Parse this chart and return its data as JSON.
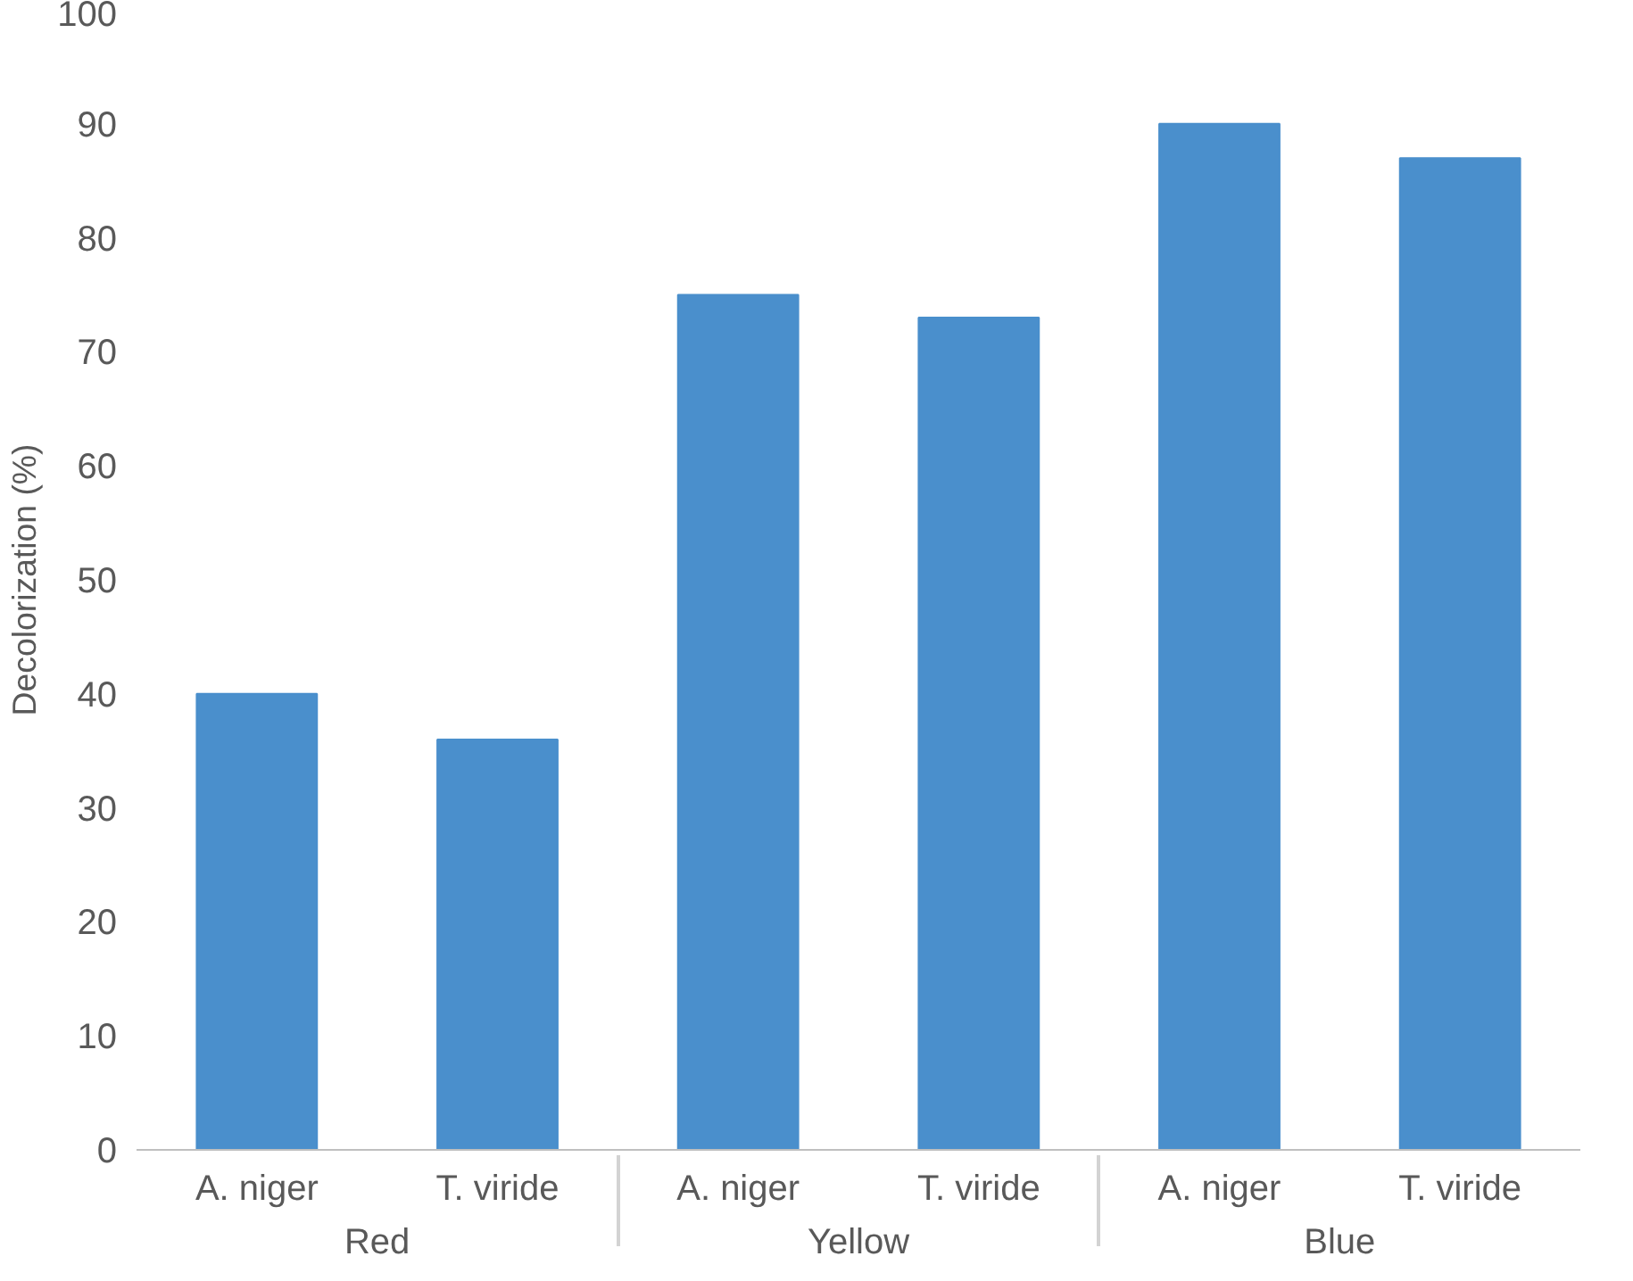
{
  "chart_data": {
    "type": "bar",
    "ylabel": "Decolorization (%)",
    "categories": [
      "A. niger",
      "T. viride",
      "A. niger",
      "T. viride",
      "A. niger",
      "T. viride"
    ],
    "values": [
      40,
      36,
      75,
      73,
      90,
      87
    ],
    "color": "#4a8fcc",
    "annotations": [
      "Red",
      "Yellow",
      "Blue"
    ],
    "ylim": [
      0,
      100
    ],
    "yticks": [
      0,
      10,
      20,
      30,
      40,
      50,
      60,
      70,
      80,
      90,
      100
    ],
    "grid": false
  }
}
